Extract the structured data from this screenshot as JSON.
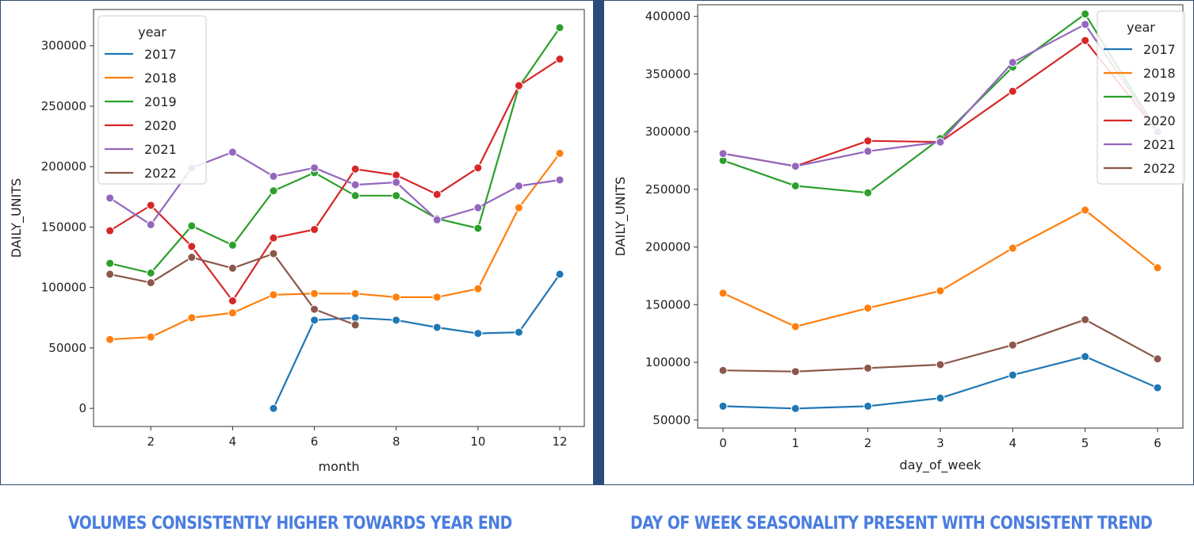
{
  "captions": {
    "left": "VOLUMES CONSISTENTLY HIGHER TOWARDS YEAR END",
    "right": "DAY OF WEEK SEASONALITY PRESENT WITH CONSISTENT TREND"
  },
  "colors": {
    "2017": "#1f77b4",
    "2018": "#ff7f0e",
    "2019": "#2ca02c",
    "2020": "#d62728",
    "2021": "#9467bd",
    "2022": "#8c564b"
  },
  "chart_data": [
    {
      "type": "line",
      "xlabel": "month",
      "ylabel": "DAILY_UNITS",
      "xlim": [
        0.6,
        12.6
      ],
      "ylim": [
        -15000,
        330000
      ],
      "xticks": [
        2,
        4,
        6,
        8,
        10,
        12
      ],
      "yticks": [
        0,
        50000,
        100000,
        150000,
        200000,
        250000,
        300000
      ],
      "legend": {
        "title": "year",
        "placement": "top-left"
      },
      "grid": false,
      "series": [
        {
          "name": "2017",
          "x": [
            5,
            6,
            7,
            8,
            9,
            10,
            11,
            12
          ],
          "values": [
            0,
            73000,
            75000,
            73000,
            67000,
            62000,
            63000,
            111000
          ]
        },
        {
          "name": "2018",
          "x": [
            1,
            2,
            3,
            4,
            5,
            6,
            7,
            8,
            9,
            10,
            11,
            12
          ],
          "values": [
            57000,
            59000,
            75000,
            79000,
            94000,
            95000,
            95000,
            92000,
            92000,
            99000,
            166000,
            211000
          ]
        },
        {
          "name": "2019",
          "x": [
            1,
            2,
            3,
            4,
            5,
            6,
            7,
            8,
            9,
            10,
            11,
            12
          ],
          "values": [
            120000,
            112000,
            151000,
            135000,
            180000,
            195000,
            176000,
            176000,
            157000,
            149000,
            266000,
            315000
          ]
        },
        {
          "name": "2020",
          "x": [
            1,
            2,
            3,
            4,
            5,
            6,
            7,
            8,
            9,
            10,
            11,
            12
          ],
          "values": [
            147000,
            168000,
            134000,
            89000,
            141000,
            148000,
            198000,
            193000,
            177000,
            199000,
            267000,
            289000
          ]
        },
        {
          "name": "2021",
          "x": [
            1,
            2,
            3,
            4,
            5,
            6,
            7,
            8,
            9,
            10,
            11,
            12
          ],
          "values": [
            174000,
            152000,
            199000,
            212000,
            192000,
            199000,
            185000,
            187000,
            156000,
            166000,
            184000,
            189000
          ]
        },
        {
          "name": "2022",
          "x": [
            1,
            2,
            3,
            4,
            5,
            6,
            7
          ],
          "values": [
            111000,
            104000,
            125000,
            116000,
            128000,
            82000,
            69000
          ]
        }
      ]
    },
    {
      "type": "line",
      "xlabel": "day_of_week",
      "ylabel": "DAILY_UNITS",
      "xlim": [
        -0.35,
        6.35
      ],
      "ylim": [
        43000,
        410000
      ],
      "xticks": [
        0,
        1,
        2,
        3,
        4,
        5,
        6
      ],
      "yticks": [
        50000,
        100000,
        150000,
        200000,
        250000,
        300000,
        350000,
        400000
      ],
      "legend": {
        "title": "year",
        "placement": "top-right"
      },
      "grid": false,
      "series": [
        {
          "name": "2017",
          "x": [
            0,
            1,
            2,
            3,
            4,
            5,
            6
          ],
          "values": [
            62000,
            60000,
            62000,
            69000,
            89000,
            105000,
            78000
          ]
        },
        {
          "name": "2018",
          "x": [
            0,
            1,
            2,
            3,
            4,
            5,
            6
          ],
          "values": [
            160000,
            131000,
            147000,
            162000,
            199000,
            232000,
            182000
          ]
        },
        {
          "name": "2019",
          "x": [
            0,
            1,
            2,
            3,
            4,
            5,
            6
          ],
          "values": [
            275000,
            253000,
            247000,
            294000,
            356000,
            402000,
            300000
          ]
        },
        {
          "name": "2020",
          "x": [
            0,
            1,
            2,
            3,
            4,
            5,
            6
          ],
          "values": [
            281000,
            270000,
            292000,
            291000,
            335000,
            379000,
            300000
          ]
        },
        {
          "name": "2021",
          "x": [
            0,
            1,
            2,
            3,
            4,
            5,
            6
          ],
          "values": [
            281000,
            270000,
            283000,
            291000,
            360000,
            393000,
            300000
          ]
        },
        {
          "name": "2022",
          "x": [
            0,
            1,
            2,
            3,
            4,
            5,
            6
          ],
          "values": [
            93000,
            92000,
            95000,
            98000,
            115000,
            137000,
            103000
          ]
        }
      ]
    }
  ]
}
